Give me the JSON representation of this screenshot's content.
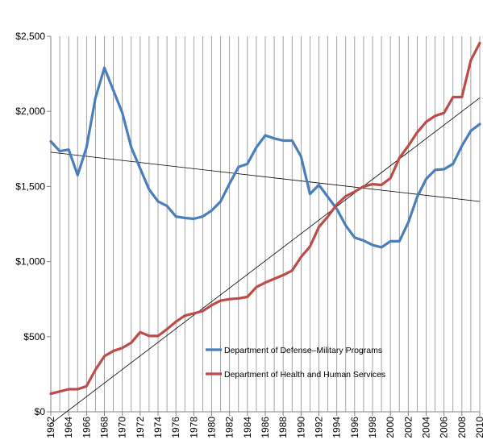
{
  "chart_data": {
    "type": "line",
    "title": "",
    "xlabel": "",
    "ylabel": "",
    "x": [
      1962,
      1963,
      1964,
      1965,
      1966,
      1967,
      1968,
      1969,
      1970,
      1971,
      1972,
      1973,
      1974,
      1975,
      1976,
      1977,
      1978,
      1979,
      1980,
      1981,
      1982,
      1983,
      1984,
      1985,
      1986,
      1987,
      1988,
      1989,
      1990,
      1991,
      1992,
      1993,
      1994,
      1995,
      1996,
      1997,
      1998,
      1999,
      2000,
      2001,
      2002,
      2003,
      2004,
      2005,
      2006,
      2007,
      2008,
      2009,
      2010
    ],
    "x_tick_labels": [
      "1962",
      "1964",
      "1966",
      "1968",
      "1970",
      "1972",
      "1974",
      "1976",
      "1978",
      "1980",
      "1982",
      "1984",
      "1986",
      "1988",
      "1990",
      "1992",
      "1994",
      "1996",
      "1998",
      "2000",
      "2002",
      "2004",
      "2006",
      "2008",
      "2010"
    ],
    "ylim": [
      0,
      2500
    ],
    "y_tick_values": [
      0,
      500,
      1000,
      1500,
      2000,
      2500
    ],
    "y_tick_labels": [
      "$0",
      "$500",
      "$1,000",
      "$1,500",
      "$2,000",
      "$2,500"
    ],
    "grid": "vertical",
    "legend_position": "lower-middle",
    "series": [
      {
        "name": "Department of Defense–Military Programs",
        "color": "#4a7ebb",
        "values": [
          1800,
          1735,
          1745,
          1575,
          1760,
          2090,
          2290,
          2140,
          1990,
          1760,
          1620,
          1480,
          1400,
          1370,
          1300,
          1290,
          1285,
          1300,
          1340,
          1400,
          1520,
          1630,
          1650,
          1760,
          1840,
          1820,
          1805,
          1805,
          1700,
          1450,
          1510,
          1430,
          1350,
          1240,
          1160,
          1140,
          1110,
          1095,
          1135,
          1135,
          1260,
          1430,
          1550,
          1610,
          1615,
          1650,
          1770,
          1870,
          1915
        ]
      },
      {
        "name": "Department of Health and Human Services",
        "color": "#be4b48",
        "values": [
          120,
          135,
          150,
          150,
          170,
          280,
          370,
          405,
          425,
          460,
          530,
          505,
          505,
          550,
          600,
          640,
          655,
          670,
          710,
          740,
          750,
          755,
          765,
          830,
          860,
          885,
          910,
          940,
          1030,
          1100,
          1230,
          1300,
          1380,
          1435,
          1465,
          1500,
          1515,
          1510,
          1555,
          1690,
          1770,
          1860,
          1930,
          1970,
          1990,
          2095,
          2095,
          2340,
          2455
        ]
      }
    ],
    "trendlines": [
      {
        "series": "Department of Defense–Military Programs",
        "x": [
          1962,
          2010
        ],
        "y": [
          1728,
          1400
        ],
        "color": "#000000"
      },
      {
        "series": "Department of Health and Human Services",
        "x": [
          1962,
          2010
        ],
        "y": [
          -80,
          2090
        ],
        "color": "#000000"
      }
    ]
  }
}
